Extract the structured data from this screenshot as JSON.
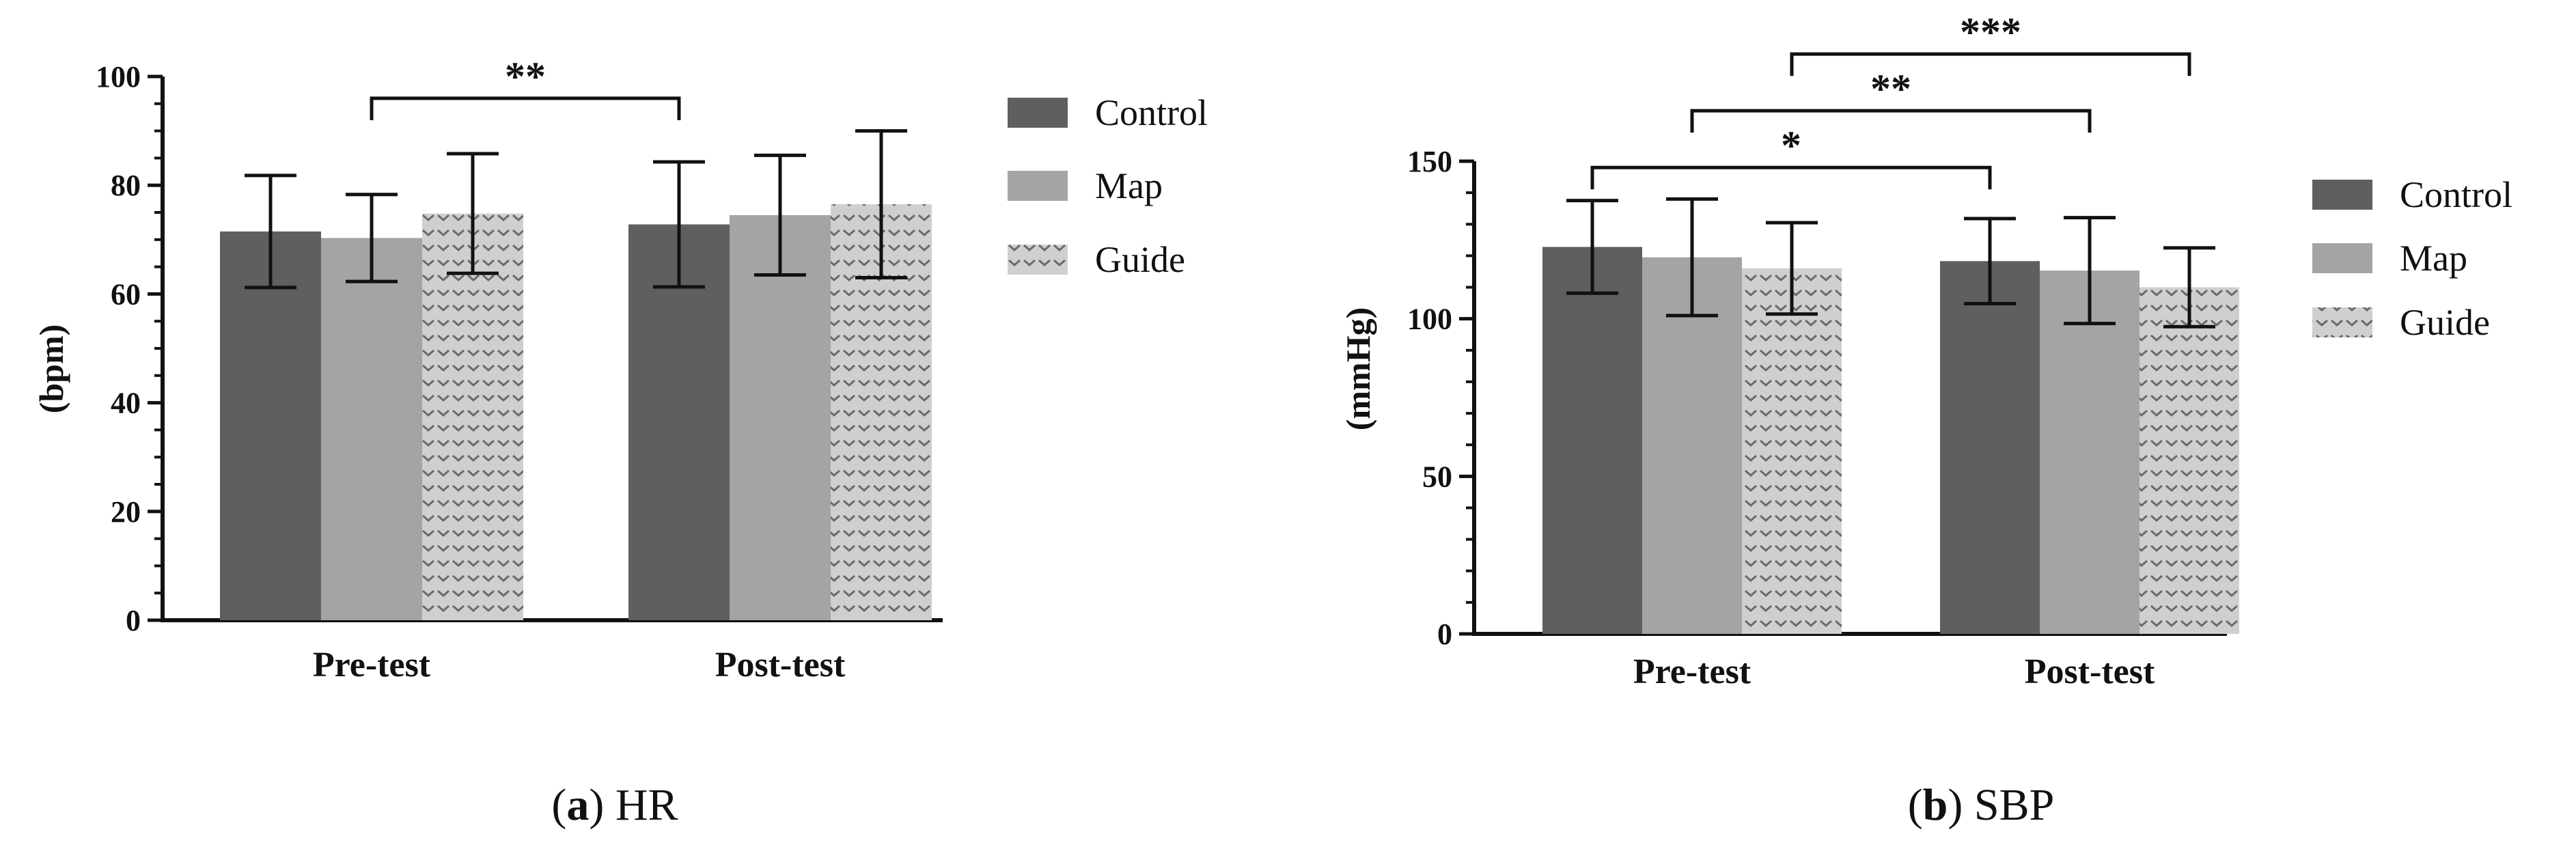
{
  "colors": {
    "control": "#5f5f5f",
    "map": "#a4a4a4",
    "guide_bg": "#cfcfcf",
    "guide_mark": "#6a6a6a",
    "axis": "#111111"
  },
  "chart_data": [
    {
      "id": "hr",
      "type": "bar",
      "caption_letter": "a",
      "caption_text": "HR",
      "ylabel": "(bpm)",
      "xlabel": "",
      "ylim": [
        0,
        100
      ],
      "yticks": [
        "0",
        "20",
        "40",
        "60",
        "80",
        "100"
      ],
      "categories": [
        "Pre-test",
        "Post-test"
      ],
      "series": [
        {
          "name": "Control",
          "key": "control",
          "values": [
            71.5,
            72.8
          ],
          "errors": [
            10.3,
            11.5
          ]
        },
        {
          "name": "Map",
          "key": "map",
          "values": [
            70.3,
            74.5
          ],
          "errors": [
            8.0,
            11.0
          ]
        },
        {
          "name": "Guide",
          "key": "guide",
          "values": [
            74.8,
            76.5
          ],
          "errors": [
            11.0,
            13.5
          ]
        }
      ],
      "legend": [
        "Control",
        "Map",
        "Guide"
      ],
      "significance": [
        {
          "label": "**",
          "from": {
            "category": 0,
            "series": 1
          },
          "to": {
            "category": 1,
            "series": 0
          },
          "y": 96
        }
      ]
    },
    {
      "id": "sbp",
      "type": "bar",
      "caption_letter": "b",
      "caption_text": "SBP",
      "ylabel": "(mmHg)",
      "xlabel": "",
      "ylim": [
        0,
        150
      ],
      "yticks": [
        "0",
        "50",
        "100",
        "150"
      ],
      "categories": [
        "Pre-test",
        "Post-test"
      ],
      "series": [
        {
          "name": "Control",
          "key": "control",
          "values": [
            122.8,
            118.3
          ],
          "errors": [
            14.7,
            13.5
          ]
        },
        {
          "name": "Map",
          "key": "map",
          "values": [
            119.5,
            115.3
          ],
          "errors": [
            18.5,
            16.8
          ]
        },
        {
          "name": "Guide",
          "key": "guide",
          "values": [
            116.0,
            110.0
          ],
          "errors": [
            14.5,
            12.5
          ]
        }
      ],
      "legend": [
        "Control",
        "Map",
        "Guide"
      ],
      "significance": [
        {
          "label": "*",
          "from": {
            "category": 0,
            "series": 0
          },
          "to": {
            "category": 1,
            "series": 0
          },
          "y": 148
        },
        {
          "label": "**",
          "from": {
            "category": 0,
            "series": 1
          },
          "to": {
            "category": 1,
            "series": 1
          },
          "y": 166
        },
        {
          "label": "***",
          "from": {
            "category": 0,
            "series": 2
          },
          "to": {
            "category": 1,
            "series": 2
          },
          "y": 184
        }
      ]
    }
  ]
}
